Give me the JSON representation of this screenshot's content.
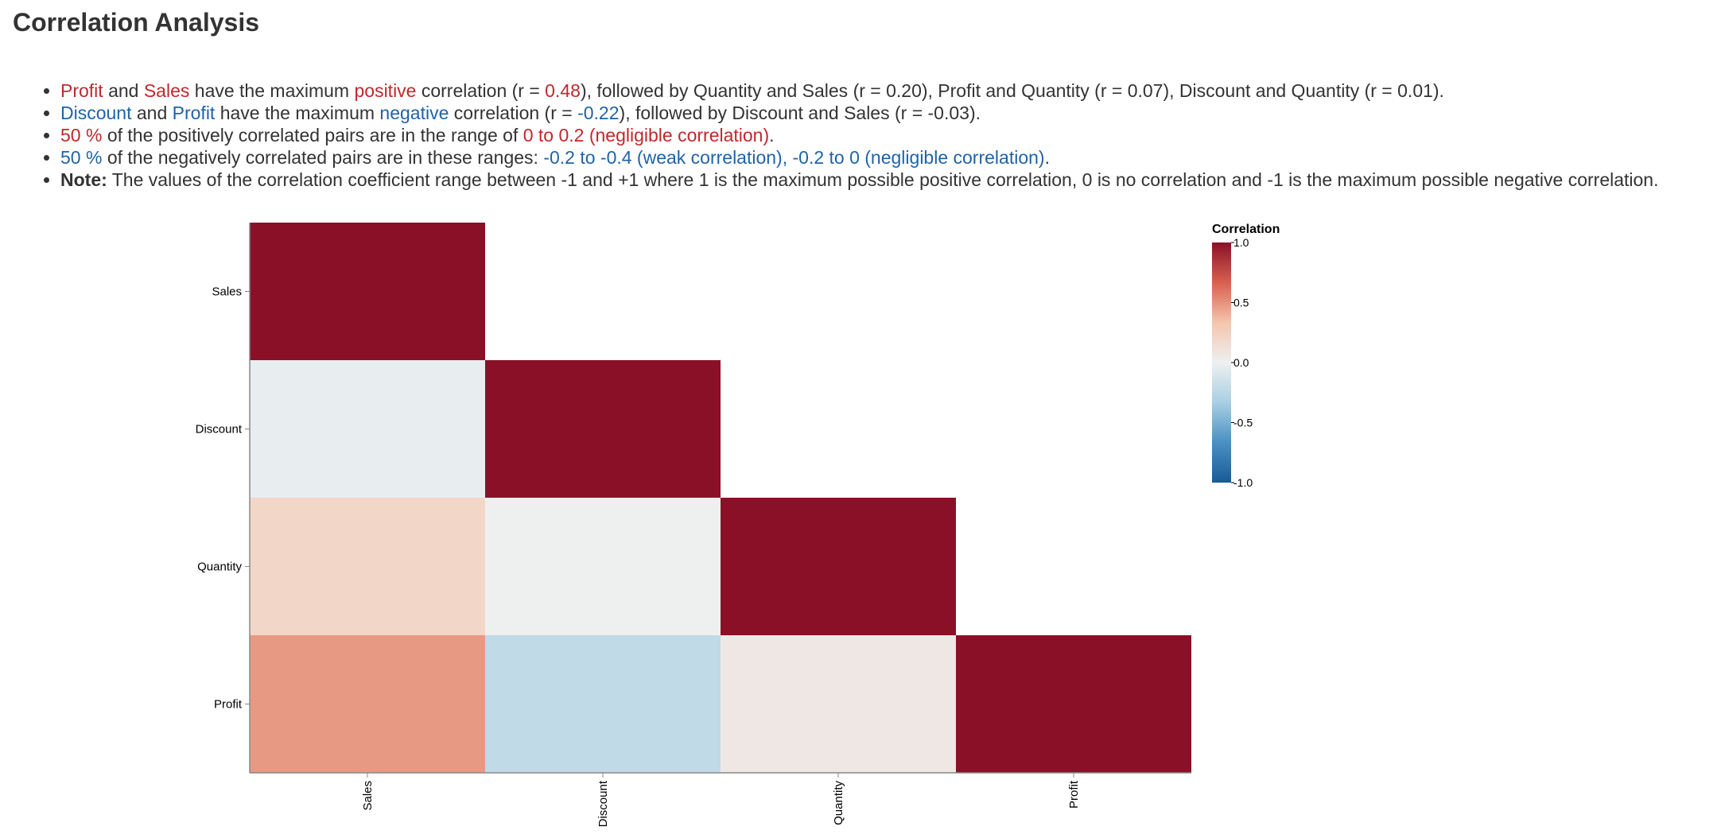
{
  "page": {
    "title": "Correlation Analysis"
  },
  "insights": [
    {
      "parts": [
        {
          "text": "Profit",
          "tone": "pos"
        },
        {
          "text": " and ",
          "tone": ""
        },
        {
          "text": "Sales",
          "tone": "pos"
        },
        {
          "text": " have the maximum ",
          "tone": ""
        },
        {
          "text": "positive",
          "tone": "pos"
        },
        {
          "text": " correlation (r = ",
          "tone": ""
        },
        {
          "text": "0.48",
          "tone": "pos"
        },
        {
          "text": "), followed by Quantity and Sales (r = 0.20), Profit and Quantity (r = 0.07), Discount and Quantity (r = 0.01).",
          "tone": ""
        }
      ]
    },
    {
      "parts": [
        {
          "text": "Discount",
          "tone": "neg"
        },
        {
          "text": " and ",
          "tone": ""
        },
        {
          "text": "Profit",
          "tone": "neg"
        },
        {
          "text": " have the maximum ",
          "tone": ""
        },
        {
          "text": "negative",
          "tone": "neg"
        },
        {
          "text": " correlation (r = ",
          "tone": ""
        },
        {
          "text": "-0.22",
          "tone": "neg"
        },
        {
          "text": "), followed by Discount and Sales (r = -0.03).",
          "tone": ""
        }
      ]
    },
    {
      "parts": [
        {
          "text": "50 %",
          "tone": "pos"
        },
        {
          "text": " of the positively correlated pairs are in the range of ",
          "tone": ""
        },
        {
          "text": "0 to 0.2 (negligible correlation)",
          "tone": "pos"
        },
        {
          "text": ".",
          "tone": ""
        }
      ]
    },
    {
      "parts": [
        {
          "text": "50 %",
          "tone": "neg"
        },
        {
          "text": " of the negatively correlated pairs are in these ranges: ",
          "tone": ""
        },
        {
          "text": "-0.2 to -0.4 (weak correlation), -0.2 to 0 (negligible correlation)",
          "tone": "neg"
        },
        {
          "text": ".",
          "tone": ""
        }
      ]
    },
    {
      "parts": [
        {
          "text": "Note:",
          "tone": "bold"
        },
        {
          "text": " The values of the correlation coefficient range between -1 and +1 where 1 is the maximum possible positive correlation, 0 is no correlation and -1 is the maximum possible negative correlation.",
          "tone": ""
        }
      ]
    }
  ],
  "colors": {
    "positive_text": "#c0282d",
    "negative_text": "#1f63a8",
    "scale_stops": [
      "#1a5a96",
      "#4a90c2",
      "#a8cfe3",
      "#eef0f1",
      "#f4c5ad",
      "#d9604e",
      "#8a1028"
    ]
  },
  "chart_data": {
    "type": "heatmap",
    "variables": [
      "Sales",
      "Discount",
      "Quantity",
      "Profit"
    ],
    "lower_triangle_only": true,
    "cells": [
      {
        "row": "Sales",
        "col": "Sales",
        "value": 1.0
      },
      {
        "row": "Discount",
        "col": "Sales",
        "value": -0.03
      },
      {
        "row": "Discount",
        "col": "Discount",
        "value": 1.0
      },
      {
        "row": "Quantity",
        "col": "Sales",
        "value": 0.2
      },
      {
        "row": "Quantity",
        "col": "Discount",
        "value": 0.01
      },
      {
        "row": "Quantity",
        "col": "Quantity",
        "value": 1.0
      },
      {
        "row": "Profit",
        "col": "Sales",
        "value": 0.48
      },
      {
        "row": "Profit",
        "col": "Discount",
        "value": -0.22
      },
      {
        "row": "Profit",
        "col": "Quantity",
        "value": 0.07
      },
      {
        "row": "Profit",
        "col": "Profit",
        "value": 1.0
      }
    ],
    "legend": {
      "title": "Correlation",
      "ticks": [
        "1.0",
        "0.5",
        "0.0",
        "-0.5",
        "-1.0"
      ],
      "domain": [
        -1,
        1
      ],
      "placement": "right"
    },
    "grid": false
  }
}
